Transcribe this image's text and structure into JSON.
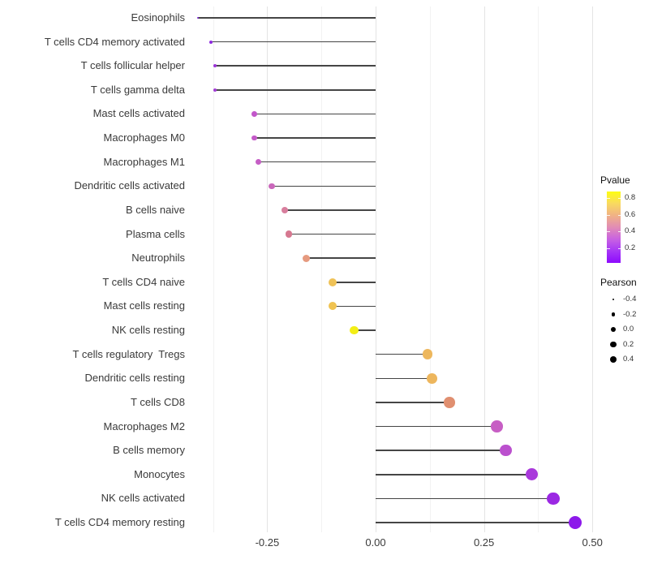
{
  "chart_data": {
    "type": "scatter",
    "variant": "horizontal-lollipop",
    "title": "",
    "xlabel": "",
    "ylabel": "",
    "xlim": [
      -0.42,
      0.6
    ],
    "grid": {
      "show": true,
      "major": [
        -0.25,
        0,
        0.25,
        0.5
      ],
      "minor": [
        -0.375,
        -0.125,
        0.125,
        0.375
      ]
    },
    "x_ticks": [
      {
        "label": "-0.25",
        "value": -0.25
      },
      {
        "label": "0.00",
        "value": 0
      },
      {
        "label": "0.25",
        "value": 0.25
      },
      {
        "label": "0.50",
        "value": 0.5
      }
    ],
    "rows": [
      {
        "label": "Eosinophils",
        "pearson": -0.41,
        "pvalue": 0.05,
        "color": "#7d1ed8"
      },
      {
        "label": "T cells CD4 memory activated",
        "pearson": -0.38,
        "pvalue": 0.08,
        "color": "#8e2ae0"
      },
      {
        "label": "T cells follicular helper",
        "pearson": -0.37,
        "pvalue": 0.1,
        "color": "#9c35d8"
      },
      {
        "label": "T cells gamma delta",
        "pearson": -0.37,
        "pvalue": 0.1,
        "color": "#a23cd4"
      },
      {
        "label": "Mast cells activated",
        "pearson": -0.28,
        "pvalue": 0.22,
        "color": "#c257ca"
      },
      {
        "label": "Macrophages M0",
        "pearson": -0.28,
        "pvalue": 0.22,
        "color": "#c45ac8"
      },
      {
        "label": "Macrophages M1",
        "pearson": -0.27,
        "pvalue": 0.23,
        "color": "#c55ec5"
      },
      {
        "label": "Dendritic cells activated",
        "pearson": -0.24,
        "pvalue": 0.27,
        "color": "#ca68bb"
      },
      {
        "label": "B cells naive",
        "pearson": -0.21,
        "pvalue": 0.36,
        "color": "#d87e9d"
      },
      {
        "label": "Plasma cells",
        "pearson": -0.2,
        "pvalue": 0.37,
        "color": "#d67890"
      },
      {
        "label": "Neutrophils",
        "pearson": -0.16,
        "pvalue": 0.47,
        "color": "#e69a7f"
      },
      {
        "label": "T cells CD4 naive",
        "pearson": -0.1,
        "pvalue": 0.62,
        "color": "#efc257"
      },
      {
        "label": "Mast cells resting",
        "pearson": -0.1,
        "pvalue": 0.63,
        "color": "#f0c351"
      },
      {
        "label": "NK cells resting",
        "pearson": -0.05,
        "pvalue": 0.82,
        "color": "#f3ee16"
      },
      {
        "label": "T cells regulatory  Tregs",
        "pearson": 0.12,
        "pvalue": 0.58,
        "color": "#edb75d"
      },
      {
        "label": "Dendritic cells resting",
        "pearson": 0.13,
        "pvalue": 0.58,
        "color": "#edb65d"
      },
      {
        "label": "T cells CD8",
        "pearson": 0.17,
        "pvalue": 0.45,
        "color": "#e08f70"
      },
      {
        "label": "Macrophages M2",
        "pearson": 0.28,
        "pvalue": 0.23,
        "color": "#c75ec4"
      },
      {
        "label": "B cells memory",
        "pearson": 0.3,
        "pvalue": 0.19,
        "color": "#bb50ce"
      },
      {
        "label": "Monocytes",
        "pearson": 0.36,
        "pvalue": 0.13,
        "color": "#a939db"
      },
      {
        "label": "NK cells activated",
        "pearson": 0.41,
        "pvalue": 0.09,
        "color": "#9b28e3"
      },
      {
        "label": "T cells CD4 memory resting",
        "pearson": 0.46,
        "pvalue": 0.06,
        "color": "#8d19ea"
      }
    ],
    "legend": {
      "pvalue": {
        "title": "Pvalue",
        "domain_top": 0.88,
        "domain_bottom": 0.02,
        "gradient_stops": [
          "#fdfd11",
          "#f9da60",
          "#f0b285",
          "#e28cb5",
          "#c862e2",
          "#a636f6",
          "#8d0bfd"
        ],
        "ticks": [
          {
            "label": "0.8",
            "value": 0.8
          },
          {
            "label": "0.6",
            "value": 0.6
          },
          {
            "label": "0.4",
            "value": 0.4
          },
          {
            "label": "0.2",
            "value": 0.2
          }
        ]
      },
      "pearson": {
        "title": "Pearson",
        "items": [
          {
            "label": "-0.4",
            "value": -0.4,
            "diameter": 2.6
          },
          {
            "label": "-0.2",
            "value": -0.2,
            "diameter": 4.6
          },
          {
            "label": "0.0",
            "value": 0.0,
            "diameter": 6.2
          },
          {
            "label": "0.2",
            "value": 0.2,
            "diameter": 7.4
          },
          {
            "label": "0.4",
            "value": 0.4,
            "diameter": 8.8
          }
        ]
      }
    },
    "colors": {
      "background": "#ffffff",
      "stem": "#454545",
      "grid_major": "#e4e4e4",
      "grid_minor": "#f2f2f2",
      "axis_text": "#3a3a3a"
    }
  }
}
